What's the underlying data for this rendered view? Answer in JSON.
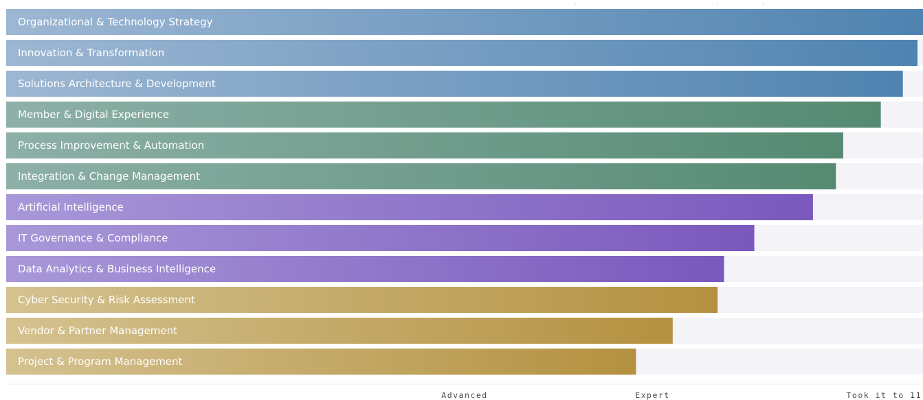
{
  "chart_data": {
    "type": "bar",
    "orientation": "horizontal",
    "categories": [
      "Organizational & Technology Strategy",
      "Innovation & Transformation",
      "Solutions Architecture & Development",
      "Member & Digital Experience",
      "Process Improvement & Automation",
      "Integration & Change Management",
      "Artificial Intelligence",
      "IT Governance & Compliance",
      "Data Analytics & Business Intelligence",
      "Cyber Security & Risk Assessment",
      "Vendor & Partner Management",
      "Project & Program Management"
    ],
    "values": [
      1.0,
      0.994,
      0.978,
      0.954,
      0.913,
      0.905,
      0.88,
      0.816,
      0.783,
      0.776,
      0.727,
      0.687
    ],
    "value_scale": "fraction of maximum (Took it to 11)",
    "x_ticks": [
      {
        "label": "Advanced",
        "value": 0.5
      },
      {
        "label": "Expert",
        "value": 0.705
      },
      {
        "label": "Took it to 11",
        "value": 1.0
      }
    ],
    "xlim": [
      0,
      1
    ],
    "color_groups": [
      {
        "from": "#9db7d3",
        "to": "#4f83b0",
        "bars": [
          0,
          1,
          2
        ]
      },
      {
        "from": "#8db0a8",
        "to": "#558a72",
        "bars": [
          3,
          4,
          5
        ]
      },
      {
        "from": "#a898d8",
        "to": "#7a58bd",
        "bars": [
          6,
          7,
          8
        ]
      },
      {
        "from": "#d4c290",
        "to": "#b49140",
        "bars": [
          9,
          10,
          11
        ]
      }
    ],
    "track_color": "#f4f3f8",
    "legend": "none",
    "grid": false
  }
}
